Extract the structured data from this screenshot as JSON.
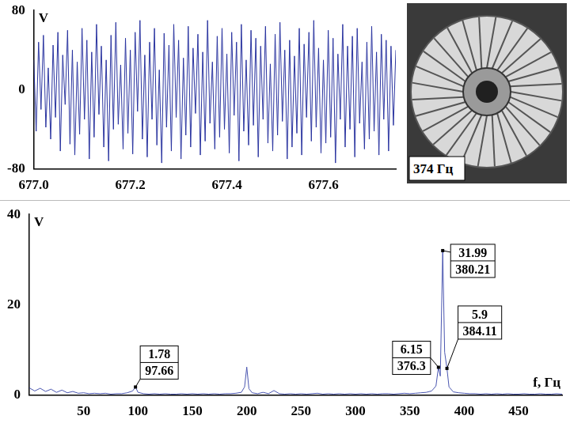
{
  "chart_data": [
    {
      "type": "line",
      "y_label": "V",
      "inset_label": "374 Гц",
      "color": "#2b35a0",
      "grid": false,
      "xlim": [
        677,
        677.75
      ],
      "ylim": [
        -80,
        80
      ],
      "xticks": [
        {
          "value": 677,
          "label": "677.0"
        },
        677.2,
        677.4,
        677.6
      ],
      "yticks": [
        -80,
        0,
        80
      ],
      "x": [
        677,
        677.005,
        677.01,
        677.015,
        677.02,
        677.025,
        677.03,
        677.035,
        677.04,
        677.045,
        677.05,
        677.055,
        677.06,
        677.065,
        677.07,
        677.075,
        677.08,
        677.085,
        677.09,
        677.095,
        677.1,
        677.105,
        677.11,
        677.115,
        677.12,
        677.125,
        677.13,
        677.135,
        677.14,
        677.145,
        677.15,
        677.155,
        677.16,
        677.165,
        677.17,
        677.175,
        677.18,
        677.185,
        677.19,
        677.195,
        677.2,
        677.205,
        677.21,
        677.215,
        677.22,
        677.225,
        677.23,
        677.235,
        677.24,
        677.245,
        677.25,
        677.255,
        677.26,
        677.265,
        677.27,
        677.275,
        677.28,
        677.285,
        677.29,
        677.295,
        677.3,
        677.305,
        677.31,
        677.315,
        677.32,
        677.325,
        677.33,
        677.335,
        677.34,
        677.345,
        677.35,
        677.355,
        677.36,
        677.365,
        677.37,
        677.375,
        677.38,
        677.385,
        677.39,
        677.395,
        677.4,
        677.405,
        677.41,
        677.415,
        677.42,
        677.425,
        677.43,
        677.435,
        677.44,
        677.445,
        677.45,
        677.455,
        677.46,
        677.465,
        677.47,
        677.475,
        677.48,
        677.485,
        677.49,
        677.495,
        677.5,
        677.505,
        677.51,
        677.515,
        677.52,
        677.525,
        677.53,
        677.535,
        677.54,
        677.545,
        677.55,
        677.555,
        677.56,
        677.565,
        677.57,
        677.575,
        677.58,
        677.585,
        677.59,
        677.595,
        677.6,
        677.605,
        677.61,
        677.615,
        677.62,
        677.625,
        677.63,
        677.635,
        677.64,
        677.645,
        677.65,
        677.655,
        677.66,
        677.665,
        677.67,
        677.675,
        677.68,
        677.685,
        677.69,
        677.695,
        677.7,
        677.705,
        677.71,
        677.715,
        677.72,
        677.725,
        677.73,
        677.735,
        677.74,
        677.745,
        677.75
      ],
      "values": [
        30,
        -42,
        48,
        -20,
        55,
        -38,
        22,
        -50,
        45,
        -28,
        58,
        -62,
        35,
        -15,
        60,
        -55,
        40,
        -66,
        28,
        -45,
        62,
        -30,
        50,
        -70,
        38,
        -48,
        66,
        -25,
        44,
        -58,
        30,
        -72,
        55,
        -40,
        68,
        -35,
        25,
        -60,
        52,
        -44,
        40,
        -65,
        58,
        -22,
        70,
        -50,
        35,
        -68,
        48,
        -30,
        62,
        -56,
        20,
        -74,
        57,
        -38,
        45,
        -62,
        66,
        -28,
        50,
        -70,
        32,
        -46,
        64,
        -58,
        42,
        -24,
        56,
        -66,
        38,
        -52,
        70,
        -34,
        28,
        -60,
        54,
        -48,
        62,
        -40,
        36,
        -64,
        58,
        -26,
        48,
        -72,
        66,
        -42,
        30,
        -56,
        60,
        -36,
        52,
        -68,
        44,
        -30,
        64,
        -54,
        26,
        -62,
        56,
        -46,
        68,
        -32,
        40,
        -70,
        50,
        -58,
        34,
        -44,
        62,
        -66,
        46,
        -28,
        58,
        -52,
        70,
        -38,
        42,
        -64,
        30,
        -54,
        60,
        -48,
        52,
        -74,
        36,
        -30,
        66,
        -58,
        44,
        -40,
        54,
        -68,
        62,
        -34,
        28,
        -60,
        48,
        -50,
        64,
        -42,
        38,
        -66,
        56,
        -30,
        50,
        -62,
        44,
        -36,
        40
      ]
    },
    {
      "type": "line",
      "y_label": "V",
      "x_label": "f, Гц",
      "color": "#4a56b0",
      "grid": false,
      "xlim": [
        0,
        490
      ],
      "ylim": [
        0,
        40
      ],
      "xticks": [
        50,
        100,
        150,
        200,
        250,
        300,
        350,
        400,
        450
      ],
      "yticks": [
        0,
        20,
        40
      ],
      "x": [
        0,
        5,
        10,
        15,
        20,
        25,
        30,
        35,
        40,
        45,
        50,
        55,
        60,
        65,
        70,
        75,
        80,
        85,
        90,
        95,
        97.66,
        100,
        105,
        110,
        115,
        120,
        125,
        130,
        135,
        140,
        145,
        150,
        155,
        160,
        165,
        170,
        175,
        180,
        185,
        190,
        195,
        198,
        200,
        202,
        205,
        210,
        215,
        220,
        225,
        230,
        235,
        240,
        245,
        250,
        255,
        260,
        265,
        270,
        275,
        280,
        285,
        290,
        295,
        300,
        305,
        310,
        315,
        320,
        325,
        330,
        335,
        340,
        345,
        350,
        355,
        360,
        365,
        370,
        374,
        376.3,
        378,
        380.21,
        382,
        384.11,
        386,
        390,
        395,
        400,
        405,
        410,
        415,
        420,
        425,
        430,
        435,
        440,
        445,
        450,
        455,
        460,
        465,
        470,
        475,
        480,
        485,
        490
      ],
      "values": [
        1.6,
        0.9,
        1.5,
        0.8,
        1.3,
        0.6,
        1.1,
        0.5,
        0.8,
        0.4,
        0.5,
        0.3,
        0.4,
        0.3,
        0.4,
        0.2,
        0.3,
        0.3,
        0.5,
        0.9,
        1.78,
        0.6,
        0.3,
        0.2,
        0.3,
        0.2,
        0.3,
        0.2,
        0.2,
        0.3,
        0.2,
        0.3,
        0.2,
        0.3,
        0.2,
        0.3,
        0.2,
        0.3,
        0.3,
        0.4,
        0.6,
        1.8,
        6.2,
        1.4,
        0.5,
        0.3,
        0.6,
        0.3,
        1.0,
        0.3,
        0.2,
        0.3,
        0.2,
        0.3,
        0.2,
        0.3,
        0.4,
        0.2,
        0.3,
        0.2,
        0.3,
        0.2,
        0.3,
        0.2,
        0.3,
        0.2,
        0.3,
        0.2,
        0.3,
        0.3,
        0.2,
        0.3,
        0.4,
        0.3,
        0.4,
        0.5,
        0.6,
        0.9,
        2.0,
        6.15,
        4.2,
        31.99,
        9.5,
        5.9,
        1.8,
        0.7,
        0.5,
        0.4,
        0.3,
        0.3,
        0.2,
        0.3,
        0.2,
        0.3,
        0.2,
        0.3,
        0.2,
        0.2,
        0.3,
        0.2,
        0.2,
        0.3,
        0.2,
        0.2,
        0.3,
        0.2
      ],
      "annotations": [
        {
          "x": 97.66,
          "y": 1.78
        },
        {
          "x": 376.3,
          "y": 6.15
        },
        {
          "x": 380.21,
          "y": 31.99
        },
        {
          "x": 384.11,
          "y": 5.9
        }
      ]
    }
  ]
}
